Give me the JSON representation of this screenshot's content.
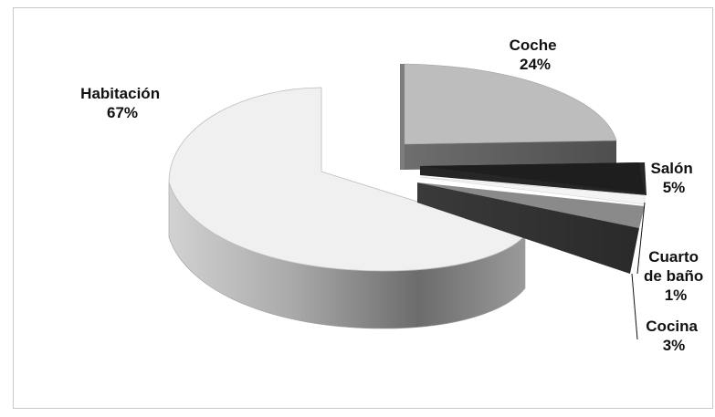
{
  "chart_data": {
    "type": "pie",
    "style": "3d-exploded",
    "title": "",
    "categories": [
      "Habitación",
      "Coche",
      "Salón",
      "Cuarto de baño",
      "Cocina"
    ],
    "values": [
      67,
      24,
      5,
      1,
      3
    ],
    "labels": [
      [
        "Habitación",
        "67%"
      ],
      [
        "Coche",
        "24%"
      ],
      [
        "Salón",
        "5%"
      ],
      [
        "Cuarto",
        "de baño",
        "1%"
      ],
      [
        "Cocina",
        "3%"
      ]
    ],
    "colors": [
      "#f0f0f0",
      "#bdbdbd",
      "#1e1e1e",
      "#f4f4f4",
      "#8a8a8a"
    ],
    "legend": "none"
  }
}
